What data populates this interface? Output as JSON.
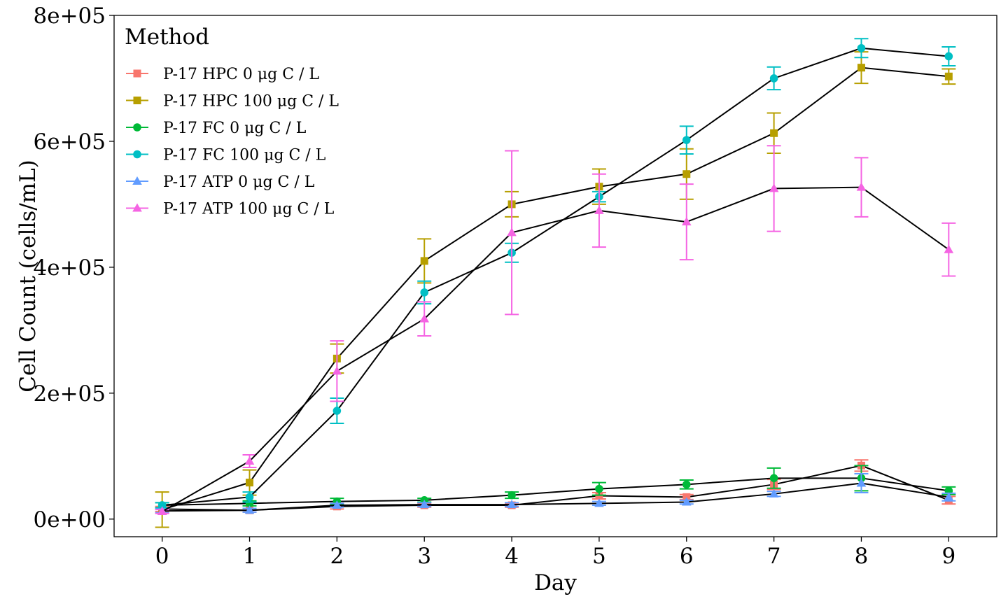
{
  "chart_data": {
    "type": "line",
    "title": "",
    "xlabel": "Day",
    "ylabel": "Cell Count (cells/mL)",
    "x": [
      0,
      1,
      2,
      3,
      4,
      5,
      6,
      7,
      8,
      9
    ],
    "xlim": [
      -0.55,
      9.55
    ],
    "ylim": [
      -28000,
      800000
    ],
    "x_ticks": [
      0,
      1,
      2,
      3,
      4,
      5,
      6,
      7,
      8,
      9
    ],
    "x_tick_labels": [
      "0",
      "1",
      "2",
      "3",
      "4",
      "5",
      "6",
      "7",
      "8",
      "9"
    ],
    "y_ticks": [
      0,
      200000,
      400000,
      600000,
      800000
    ],
    "y_tick_labels": [
      "0e+00",
      "2e+05",
      "4e+05",
      "6e+05",
      "8e+05"
    ],
    "grid": false,
    "legend": {
      "title": "Method",
      "position": "top-left"
    },
    "line_color": "#000000",
    "series": [
      {
        "name": "P-17 HPC 0 μg C / L",
        "color": "#F8766D",
        "marker": "square",
        "values": [
          16000,
          14000,
          20000,
          22000,
          22000,
          37000,
          35000,
          55000,
          85000,
          30000
        ],
        "err": [
          4000,
          3000,
          4000,
          3000,
          3000,
          5000,
          4000,
          8000,
          9000,
          6000
        ]
      },
      {
        "name": "P-17 HPC 100 μg C / L",
        "color": "#B79F00",
        "marker": "square",
        "values": [
          15000,
          58000,
          255000,
          410000,
          500000,
          528000,
          548000,
          613000,
          717000,
          703000
        ],
        "err": [
          28000,
          20000,
          23000,
          35000,
          20000,
          28000,
          40000,
          32000,
          25000,
          12000
        ]
      },
      {
        "name": "P-17 FC 0 μg C / L",
        "color": "#00BA38",
        "marker": "circle",
        "values": [
          22000,
          25000,
          28000,
          30000,
          38000,
          48000,
          55000,
          65000,
          65000,
          45000
        ],
        "err": [
          4000,
          4000,
          5000,
          3000,
          5000,
          10000,
          7000,
          16000,
          20000,
          6000
        ]
      },
      {
        "name": "P-17 FC 100 μg C / L",
        "color": "#00BFC4",
        "marker": "circle",
        "values": [
          22000,
          35000,
          172000,
          360000,
          423000,
          512000,
          602000,
          700000,
          748000,
          735000
        ],
        "err": [
          4000,
          8000,
          20000,
          18000,
          15000,
          8000,
          22000,
          18000,
          15000,
          15000
        ]
      },
      {
        "name": "P-17 ATP 0 μg C / L",
        "color": "#619CFF",
        "marker": "triangle",
        "values": [
          13000,
          14000,
          22000,
          23000,
          23000,
          25000,
          27000,
          40000,
          57000,
          35000
        ],
        "err": [
          3000,
          3000,
          3000,
          3000,
          3000,
          3000,
          3000,
          4000,
          15000,
          6000
        ]
      },
      {
        "name": "P-17 ATP 100 μg C / L",
        "color": "#F564E3",
        "marker": "triangle",
        "values": [
          12000,
          92000,
          235000,
          318000,
          455000,
          490000,
          472000,
          525000,
          527000,
          428000
        ],
        "err": [
          3000,
          10000,
          48000,
          27000,
          130000,
          58000,
          60000,
          68000,
          47000,
          42000
        ]
      }
    ]
  }
}
